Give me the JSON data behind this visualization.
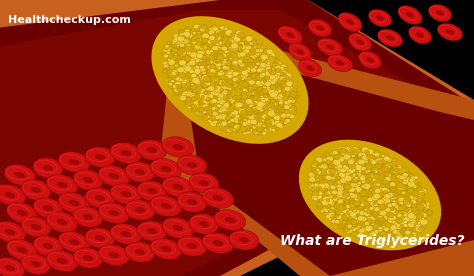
{
  "background_color": "#000000",
  "artery_outer_color": "#b85010",
  "artery_wall_color": "#c86020",
  "artery_inner_dark": "#6b0000",
  "artery_inner_mid": "#8b0a00",
  "blood_cell_color": "#cc1010",
  "blood_cell_edge": "#880000",
  "blood_cell_shadow": "#aa0000",
  "fat_base_color": "#d4a800",
  "fat_bright_color": "#f0d040",
  "fat_highlight": "#ffe060",
  "text_main": "What are Triglycerides?",
  "text_watermark": "Healthcheckup.com",
  "text_color_main": "#ffffff",
  "text_color_watermark": "#ffffff",
  "figsize": [
    4.74,
    2.76
  ],
  "dpi": 100
}
